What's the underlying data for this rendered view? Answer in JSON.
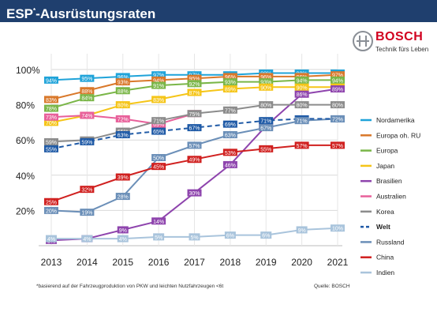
{
  "header": {
    "title_main": "ESP",
    "title_sup": "*",
    "title_rest": "-Ausrüstungsraten"
  },
  "brand": {
    "name": "BOSCH",
    "tagline": "Technik fürs Leben",
    "color": "#d1001f"
  },
  "footnote": "*basierend auf der Fahrzeugproduktion von PKW und leichten Nutzfahrzeugen <6t",
  "source": "Quelle: BOSCH",
  "chart_data": {
    "type": "line",
    "title": "ESP*-Ausrüstungsraten",
    "xlabel": "",
    "ylabel": "",
    "x": [
      2013,
      2014,
      2015,
      2016,
      2017,
      2018,
      2019,
      2020,
      2021
    ],
    "ylim": [
      0,
      100
    ],
    "yticks": [
      20,
      40,
      60,
      80,
      100
    ],
    "ytick_labels": [
      "20%",
      "40%",
      "60%",
      "80%",
      "100%"
    ],
    "grid": true,
    "legend_position": "right",
    "series": [
      {
        "name": "Nordamerika",
        "color": "#1fa3d9",
        "dashed": false,
        "values": [
          94,
          95,
          96,
          97,
          97,
          97,
          98,
          98,
          98
        ],
        "labels": [
          "94%",
          "95%",
          "96%",
          "97%",
          "97%",
          "97%",
          "98%",
          "98%",
          "98%"
        ]
      },
      {
        "name": "Europa oh. RU",
        "color": "#d9782a",
        "dashed": false,
        "values": [
          83,
          88,
          93,
          94,
          95,
          96,
          96,
          96,
          97
        ],
        "labels": [
          "83%",
          "88%",
          "93%",
          "94%",
          "95%",
          "96%",
          "96%",
          "96%",
          "97%"
        ]
      },
      {
        "name": "Europa",
        "color": "#7ab648",
        "dashed": false,
        "values": [
          78,
          84,
          88,
          91,
          92,
          93,
          93,
          94,
          94
        ],
        "labels": [
          "78%",
          "84%",
          "88%",
          "91%",
          "92%",
          "93%",
          "93%",
          "94%",
          "94%"
        ]
      },
      {
        "name": "Japan",
        "color": "#f5c518",
        "dashed": false,
        "values": [
          70,
          74,
          80,
          83,
          87,
          89,
          90,
          90,
          90
        ],
        "labels": [
          "70%",
          "74%",
          "80%",
          "83%",
          "87%",
          "89%",
          "90%",
          "90%",
          "90%"
        ]
      },
      {
        "name": "Brasilien",
        "color": "#8e44ad",
        "dashed": false,
        "values": [
          3,
          4,
          9,
          14,
          30,
          46,
          68,
          86,
          89
        ],
        "labels": [
          "3%",
          "4%",
          "9%",
          "14%",
          "30%",
          "46%",
          "68%",
          "86%",
          "89%"
        ]
      },
      {
        "name": "Australien",
        "color": "#e8609a",
        "dashed": false,
        "values": [
          73,
          74,
          72,
          69,
          75,
          null,
          null,
          null,
          null
        ],
        "labels": [
          "73%",
          "74%",
          "72%",
          "69%",
          "75%",
          "",
          "",
          "",
          ""
        ]
      },
      {
        "name": "Korea",
        "color": "#8c8c8c",
        "dashed": false,
        "values": [
          59,
          60,
          65,
          71,
          75,
          77,
          80,
          80,
          80
        ],
        "labels": [
          "59%",
          "60%",
          "65%",
          "71%",
          "75%",
          "77%",
          "80%",
          "80%",
          "80%"
        ]
      },
      {
        "name": "Welt",
        "color": "#1f5aa6",
        "dashed": true,
        "values": [
          55,
          59,
          63,
          65,
          67,
          69,
          71,
          72,
          72
        ],
        "labels": [
          "55%",
          "59%",
          "63%",
          "65%",
          "67%",
          "69%",
          "71%",
          "72%",
          "72%"
        ]
      },
      {
        "name": "Russland",
        "color": "#6b8fb8",
        "dashed": false,
        "values": [
          20,
          19,
          28,
          50,
          57,
          63,
          67,
          71,
          72
        ],
        "labels": [
          "20%",
          "19%",
          "28%",
          "50%",
          "57%",
          "63%",
          "67%",
          "71%",
          "72%"
        ]
      },
      {
        "name": "China",
        "color": "#d0201f",
        "dashed": false,
        "values": [
          25,
          32,
          39,
          45,
          49,
          53,
          55,
          57,
          57
        ],
        "labels": [
          "25%",
          "32%",
          "39%",
          "45%",
          "49%",
          "53%",
          "55%",
          "57%",
          "57%"
        ]
      },
      {
        "name": "Indien",
        "color": "#a9c4dc",
        "dashed": false,
        "values": [
          4,
          4,
          4,
          5,
          5,
          6,
          6,
          9,
          10
        ],
        "labels": [
          "4%",
          "4%",
          "4%",
          "5%",
          "5%",
          "6%",
          "6%",
          "9%",
          "10%"
        ]
      }
    ]
  }
}
